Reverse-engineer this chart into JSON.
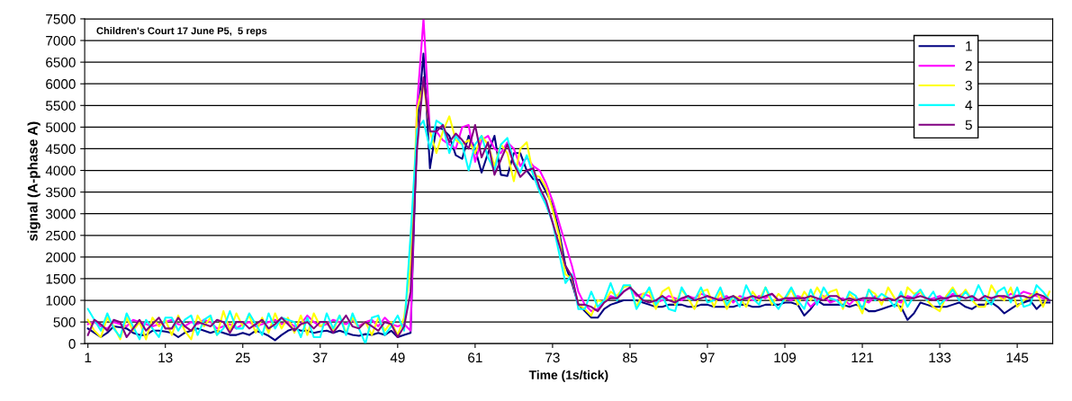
{
  "chart_data": {
    "type": "line",
    "title": "Children's Court 17 June P5,  5 reps",
    "xlabel": "Time (1s/tick)",
    "ylabel": "signal (A-phase A)",
    "x": [
      1,
      2,
      3,
      4,
      5,
      6,
      7,
      8,
      9,
      10,
      11,
      12,
      13,
      14,
      15,
      16,
      17,
      18,
      19,
      20,
      21,
      22,
      23,
      24,
      25,
      26,
      27,
      28,
      29,
      30,
      31,
      32,
      33,
      34,
      35,
      36,
      37,
      38,
      39,
      40,
      41,
      42,
      43,
      44,
      45,
      46,
      47,
      48,
      49,
      50,
      51,
      52,
      53,
      54,
      55,
      56,
      57,
      58,
      59,
      60,
      61,
      62,
      63,
      64,
      65,
      66,
      67,
      68,
      69,
      70,
      71,
      72,
      73,
      74,
      75,
      76,
      77,
      78,
      79,
      80,
      81,
      82,
      83,
      84,
      85,
      86,
      87,
      88,
      89,
      90,
      91,
      92,
      93,
      94,
      95,
      96,
      97,
      98,
      99,
      100,
      101,
      102,
      103,
      104,
      105,
      106,
      107,
      108,
      109,
      110,
      111,
      112,
      113,
      114,
      115,
      116,
      117,
      118,
      119,
      120,
      121,
      122,
      123,
      124,
      125,
      126,
      127,
      128,
      129,
      130,
      131,
      132,
      133,
      134,
      135,
      136,
      137,
      138,
      139,
      140,
      141,
      142,
      143,
      144,
      145,
      146,
      147,
      148,
      149,
      150
    ],
    "xlim": [
      0.5,
      150.5
    ],
    "xticks": [
      1,
      13,
      25,
      37,
      49,
      61,
      73,
      85,
      97,
      109,
      121,
      133,
      145
    ],
    "ylim": [
      0,
      7500
    ],
    "yticks": [
      0,
      500,
      1000,
      1500,
      2000,
      2500,
      3000,
      3500,
      4000,
      4500,
      5000,
      5500,
      6000,
      6500,
      7000,
      7500
    ],
    "grid": "y",
    "legend": "top right",
    "marker": "none",
    "line_style": "solid",
    "series": [
      {
        "name": "1",
        "color": "#000080",
        "values": [
          350,
          250,
          150,
          250,
          400,
          380,
          350,
          250,
          200,
          200,
          300,
          300,
          280,
          250,
          150,
          250,
          300,
          350,
          300,
          250,
          300,
          250,
          200,
          200,
          250,
          200,
          300,
          250,
          180,
          80,
          200,
          300,
          350,
          300,
          300,
          250,
          280,
          300,
          250,
          300,
          250,
          200,
          180,
          220,
          200,
          250,
          200,
          300,
          150,
          200,
          250,
          5000,
          6700,
          4050,
          5000,
          4950,
          4800,
          4350,
          4270,
          4800,
          4500,
          3950,
          4400,
          4800,
          3900,
          3870,
          4400,
          4400,
          4000,
          3800,
          3780,
          3500,
          3200,
          2600,
          1800,
          1400,
          900,
          750,
          600,
          600,
          800,
          900,
          950,
          1000,
          1000,
          1000,
          950,
          900,
          850,
          850,
          900,
          900,
          900,
          850,
          850,
          900,
          900,
          850,
          850,
          850,
          850,
          900,
          900,
          850,
          850,
          900,
          900,
          900,
          950,
          950,
          900,
          650,
          800,
          1000,
          900,
          900,
          900,
          900,
          850,
          900,
          850,
          750,
          750,
          800,
          850,
          900,
          850,
          550,
          700,
          950,
          900,
          850,
          850,
          850,
          900,
          950,
          850,
          800,
          900,
          900,
          950,
          850,
          700,
          800,
          900,
          950,
          1000,
          800,
          950,
          950
        ]
      },
      {
        "name": "2",
        "color": "#ff00ff",
        "values": [
          450,
          500,
          400,
          350,
          500,
          450,
          400,
          550,
          500,
          450,
          400,
          450,
          500,
          550,
          450,
          400,
          500,
          450,
          550,
          500,
          350,
          400,
          450,
          350,
          450,
          500,
          400,
          450,
          500,
          550,
          450,
          500,
          400,
          450,
          650,
          500,
          400,
          450,
          550,
          500,
          450,
          550,
          400,
          500,
          550,
          400,
          600,
          450,
          400,
          450,
          300,
          5500,
          7500,
          4900,
          4900,
          4700,
          4600,
          4500,
          5000,
          5050,
          4200,
          4700,
          4800,
          4500,
          4400,
          4650,
          4500,
          4100,
          4300,
          4100,
          4000,
          3700,
          3300,
          2800,
          2300,
          1800,
          1200,
          900,
          750,
          800,
          1000,
          1100,
          1050,
          1200,
          1300,
          1100,
          1150,
          1100,
          950,
          1000,
          1100,
          1050,
          1000,
          1100,
          1050,
          1150,
          1100,
          1000,
          1050,
          1100,
          950,
          1100,
          1050,
          1000,
          1100,
          1050,
          1150,
          1000,
          1050,
          1000,
          1100,
          1050,
          850,
          1000,
          1100,
          950,
          1000,
          1050,
          900,
          1050,
          1000,
          950,
          1100,
          1000,
          1050,
          1000,
          950,
          1100,
          1050,
          1200,
          1000,
          1050,
          1100,
          1000,
          1150,
          1100,
          1200,
          1050,
          1000,
          1100,
          1050,
          1100,
          1050,
          1150,
          1100,
          1200,
          1150,
          1100,
          1050,
          1000
        ]
      },
      {
        "name": "3",
        "color": "#ffff00",
        "values": [
          550,
          300,
          150,
          600,
          400,
          100,
          600,
          300,
          500,
          100,
          600,
          400,
          550,
          200,
          650,
          300,
          100,
          650,
          400,
          600,
          200,
          750,
          300,
          700,
          400,
          650,
          250,
          600,
          250,
          700,
          350,
          600,
          250,
          650,
          200,
          700,
          400,
          500,
          300,
          650,
          250,
          600,
          350,
          500,
          200,
          600,
          300,
          500,
          200,
          600,
          1800,
          5400,
          6000,
          4900,
          4400,
          4900,
          5250,
          4700,
          4600,
          4700,
          4400,
          4800,
          4600,
          4100,
          4600,
          4400,
          3750,
          4500,
          4650,
          3900,
          3850,
          3600,
          3100,
          2500,
          1600,
          1500,
          900,
          800,
          650,
          1000,
          950,
          1200,
          1100,
          1300,
          1350,
          850,
          1150,
          1200,
          800,
          1200,
          1300,
          900,
          1250,
          1050,
          800,
          1200,
          1250,
          850,
          1200,
          800,
          1100,
          1050,
          850,
          1200,
          1000,
          1300,
          900,
          1150,
          1000,
          1250,
          900,
          1200,
          1000,
          1300,
          1050,
          1200,
          1250,
          800,
          1150,
          1000,
          700,
          1250,
          1150,
          900,
          1300,
          1050,
          750,
          1300,
          1150,
          1200,
          1000,
          850,
          750,
          1100,
          1300,
          1050,
          1250,
          1000,
          850,
          850,
          1350,
          1100,
          1000,
          1300,
          850,
          1000,
          1100,
          1200,
          850,
          1200
        ]
      },
      {
        "name": "4",
        "color": "#00ffff",
        "values": [
          800,
          550,
          300,
          700,
          350,
          150,
          700,
          400,
          100,
          550,
          350,
          150,
          600,
          600,
          300,
          550,
          650,
          200,
          550,
          650,
          200,
          350,
          750,
          350,
          350,
          700,
          450,
          200,
          700,
          350,
          600,
          550,
          500,
          150,
          600,
          150,
          150,
          700,
          350,
          650,
          200,
          700,
          350,
          0,
          600,
          650,
          200,
          400,
          650,
          300,
          2500,
          4950,
          5150,
          4500,
          5150,
          5050,
          4400,
          4800,
          4600,
          4000,
          4600,
          4800,
          4300,
          4000,
          4600,
          4750,
          4200,
          3950,
          4350,
          3900,
          3500,
          3200,
          2800,
          2100,
          1400,
          1600,
          800,
          800,
          1200,
          850,
          1000,
          1400,
          1000,
          1350,
          1350,
          800,
          1050,
          1300,
          900,
          1100,
          800,
          750,
          1300,
          1050,
          1000,
          1300,
          950,
          1000,
          1300,
          900,
          1100,
          850,
          1350,
          1050,
          900,
          1300,
          1000,
          800,
          1050,
          1300,
          1000,
          800,
          1250,
          900,
          1300,
          1050,
          1000,
          850,
          1200,
          1100,
          800,
          1250,
          1000,
          1150,
          1050,
          850,
          1200,
          850,
          1100,
          1250,
          1000,
          1200,
          900,
          1050,
          1250,
          1000,
          1200,
          1000,
          1350,
          1050,
          900,
          1200,
          1300,
          950,
          1300,
          850,
          900,
          1350,
          1200,
          1000
        ]
      },
      {
        "name": "5",
        "color": "#800080",
        "values": [
          200,
          550,
          450,
          300,
          550,
          500,
          150,
          350,
          550,
          300,
          450,
          600,
          350,
          350,
          600,
          400,
          300,
          500,
          450,
          400,
          550,
          500,
          250,
          500,
          500,
          350,
          450,
          550,
          350,
          450,
          600,
          450,
          300,
          450,
          500,
          350,
          500,
          500,
          250,
          450,
          650,
          400,
          350,
          500,
          400,
          300,
          500,
          450,
          150,
          400,
          1200,
          4500,
          6150,
          4900,
          4900,
          5050,
          4650,
          4850,
          4700,
          4500,
          5050,
          4300,
          4650,
          3900,
          4250,
          4600,
          4150,
          3850,
          4000,
          4050,
          3600,
          3300,
          2800,
          2300,
          1800,
          1550,
          900,
          900,
          850,
          750,
          950,
          1050,
          1050,
          1200,
          1300,
          1150,
          1000,
          950,
          1000,
          1100,
          1000,
          950,
          1050,
          1100,
          1000,
          1050,
          1100,
          1050,
          1000,
          1050,
          1100,
          1000,
          1050,
          1100,
          1050,
          1100,
          1150,
          1000,
          1050,
          1050,
          1050,
          1050,
          1100,
          1050,
          1000,
          1100,
          1100,
          1000,
          1050,
          1000,
          1050,
          1050,
          1050,
          1000,
          1050,
          1000,
          1100,
          1050,
          1050,
          1100,
          1050,
          1000,
          1050,
          1050,
          1100,
          1100,
          1050,
          1100,
          1000,
          1100,
          1050,
          1100,
          1100,
          1050,
          1100,
          1100,
          1050,
          1150,
          1100,
          1000
        ]
      }
    ]
  }
}
